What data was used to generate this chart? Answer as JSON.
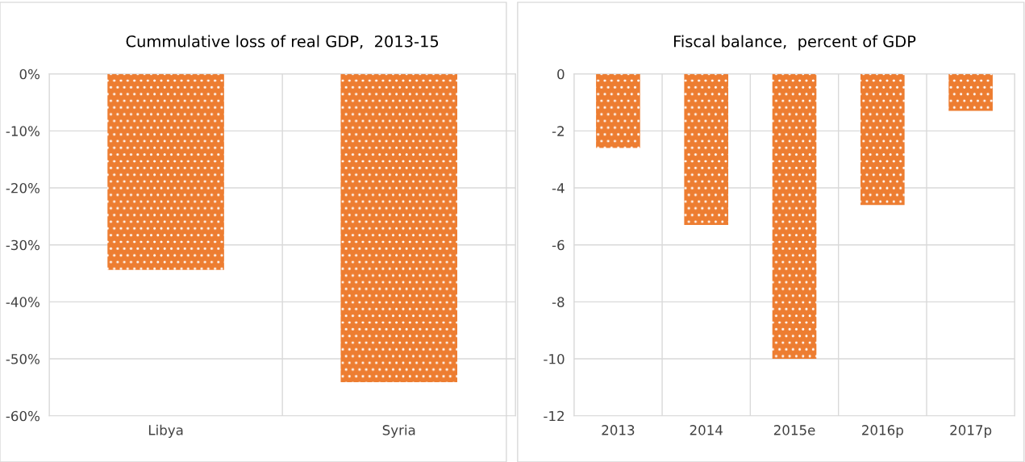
{
  "chart_data": [
    {
      "type": "bar",
      "title": "Cummulative loss of real GDP,  2013-15",
      "categories": [
        "Libya",
        "Syria"
      ],
      "values": [
        -34.4,
        -54.1
      ],
      "color": "#ed7d31",
      "ylim": [
        -60,
        0
      ],
      "yticks": [
        {
          "value": -60,
          "label": "-60%"
        },
        {
          "value": -50,
          "label": "-50%"
        },
        {
          "value": -40,
          "label": "-40%"
        },
        {
          "value": -30,
          "label": "-30%"
        },
        {
          "value": -20,
          "label": "-20%"
        },
        {
          "value": -10,
          "label": "-10%"
        },
        {
          "value": 0,
          "label": "0%"
        }
      ],
      "grid": true
    },
    {
      "type": "bar",
      "title": "Fiscal balance,  percent of GDP",
      "categories": [
        "2013",
        "2014",
        "2015e",
        "2016p",
        "2017p"
      ],
      "values": [
        -2.6,
        -5.3,
        -10.0,
        -4.6,
        -1.3
      ],
      "color": "#ed7d31",
      "ylim": [
        -12,
        0
      ],
      "yticks": [
        -12,
        -10,
        -8,
        -6,
        -4,
        -2,
        0
      ],
      "grid": true
    }
  ]
}
